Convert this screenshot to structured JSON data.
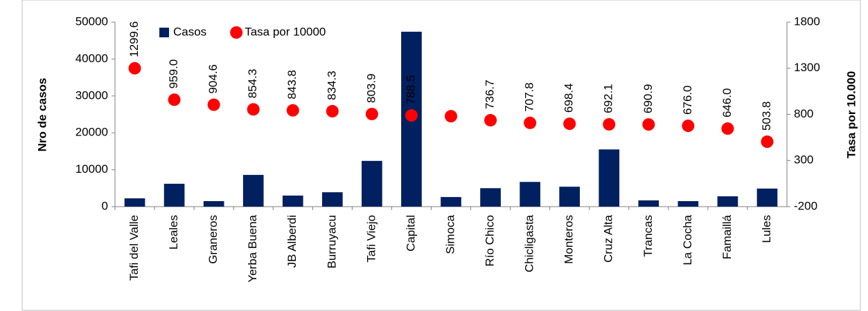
{
  "chart_data": {
    "type": "bar-scatter",
    "y_label": "Nro de casos",
    "y2_label": "Tasa por 10.000",
    "categories": [
      "Tafi del Valle",
      "Leales",
      "Graneros",
      "Yerba Buena",
      "JB Alberdi",
      "Burruyacu",
      "Tafi Viejo",
      "Capital",
      "Simoca",
      "Río Chico",
      "Chicligasta",
      "Monteros",
      "Cruz Alta",
      "Trancas",
      "La Cocha",
      "Famaillá",
      "Lules"
    ],
    "series": [
      {
        "name": "Casos",
        "color": "#002060",
        "kind": "bar",
        "values": [
          2250,
          6200,
          1500,
          8600,
          3000,
          3900,
          12400,
          47400,
          2600,
          5000,
          6700,
          5400,
          15500,
          1700,
          1500,
          2800,
          4900
        ]
      },
      {
        "name": "Tasa por 10000",
        "color": "#ff0000",
        "kind": "scatter",
        "axis": "y2",
        "values": [
          1299.6,
          959.0,
          904.6,
          854.3,
          843.8,
          834.3,
          803.9,
          788.5,
          780,
          736.7,
          707.8,
          698.4,
          692.1,
          690.9,
          676.0,
          646.0,
          503.8
        ],
        "value_labels": [
          "1299.6",
          "959.0",
          "904.6",
          "854.3",
          "843.8",
          "834.3",
          "803.9",
          "788.5",
          null,
          "736.7",
          "707.8",
          "698.4",
          "692.1",
          "690.9",
          "676.0",
          "646.0",
          "503.8"
        ]
      }
    ],
    "ylim": [
      0,
      50000
    ],
    "yticks": [
      0,
      10000,
      20000,
      30000,
      40000,
      50000
    ],
    "y2lim": [
      -200,
      1800
    ],
    "y2ticks": [
      -200,
      300,
      800,
      1300,
      1800
    ],
    "legend": "top"
  }
}
